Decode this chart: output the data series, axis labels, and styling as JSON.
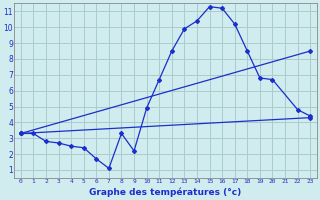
{
  "xlabel": "Graphe des températures (°c)",
  "bg_color": "#d0ecee",
  "grid_color": "#aacccc",
  "line_color": "#1a2fcc",
  "xlim": [
    -0.5,
    23.5
  ],
  "ylim": [
    0.5,
    11.5
  ],
  "xticks": [
    0,
    1,
    2,
    3,
    4,
    5,
    6,
    7,
    8,
    9,
    10,
    11,
    12,
    13,
    14,
    15,
    16,
    17,
    18,
    19,
    20,
    21,
    22,
    23
  ],
  "yticks": [
    1,
    2,
    3,
    4,
    5,
    6,
    7,
    8,
    9,
    10,
    11
  ],
  "curve1_x": [
    0,
    1,
    2,
    3,
    4,
    5,
    6,
    7,
    8,
    9,
    10,
    11,
    12,
    13,
    14,
    15,
    16,
    17,
    18,
    19,
    20,
    22,
    23
  ],
  "curve1_y": [
    3.3,
    3.3,
    2.8,
    2.7,
    2.5,
    2.4,
    1.7,
    1.1,
    3.3,
    2.2,
    4.9,
    6.7,
    8.5,
    9.9,
    10.4,
    11.3,
    11.2,
    10.2,
    8.5,
    6.8,
    6.7,
    4.8,
    4.4
  ],
  "line2_x": [
    0,
    23
  ],
  "line2_y": [
    3.3,
    4.3
  ],
  "line3_x": [
    0,
    23
  ],
  "line3_y": [
    3.3,
    8.5
  ]
}
